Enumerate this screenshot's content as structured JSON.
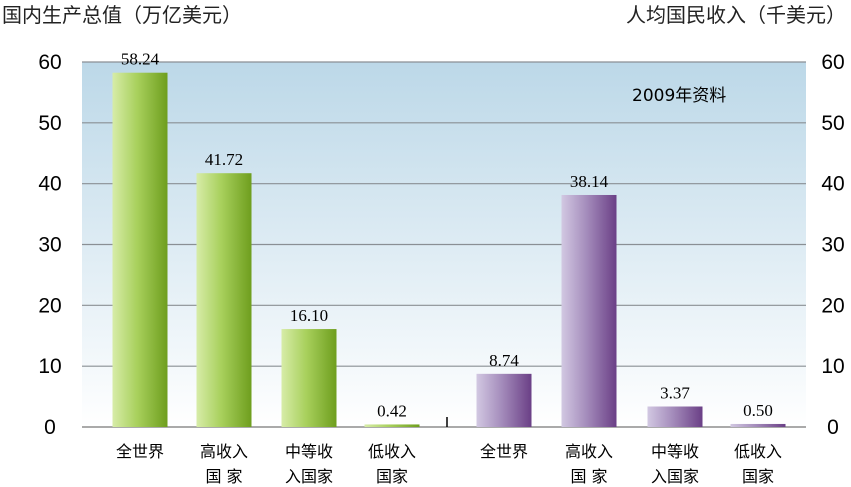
{
  "chart_data": {
    "type": "bar",
    "note": "2009年资料",
    "left_axis": {
      "title": "国内生产总值（万亿美元）",
      "range": [
        0,
        60
      ],
      "ticks": [
        0,
        10,
        20,
        30,
        40,
        50,
        60
      ]
    },
    "right_axis": {
      "title": "人均国民收入（千美元）",
      "range": [
        0,
        60
      ],
      "ticks": [
        0,
        10,
        20,
        30,
        40,
        50,
        60
      ]
    },
    "series": [
      {
        "axis": "left",
        "color": "#8cbb3c",
        "categories": [
          [
            "全世界"
          ],
          [
            "高收入",
            "国 家"
          ],
          [
            "中等收",
            "入国家"
          ],
          [
            "低收入",
            "国家"
          ]
        ],
        "values": [
          58.24,
          41.72,
          16.1,
          0.42
        ],
        "labels": [
          "58.24",
          "41.72",
          "16.10",
          "0.42"
        ]
      },
      {
        "axis": "right",
        "color": "#8a6aa0",
        "categories": [
          [
            "全世界"
          ],
          [
            "高收入",
            "国 家"
          ],
          [
            "中等收",
            "入国家"
          ],
          [
            "低收入",
            "国家"
          ]
        ],
        "values": [
          8.74,
          38.14,
          3.37,
          0.5
        ],
        "labels": [
          "8.74",
          "38.14",
          "3.37",
          "0.50"
        ]
      }
    ],
    "background_gradient": [
      "#bcd8e8",
      "#ffffff"
    ]
  }
}
